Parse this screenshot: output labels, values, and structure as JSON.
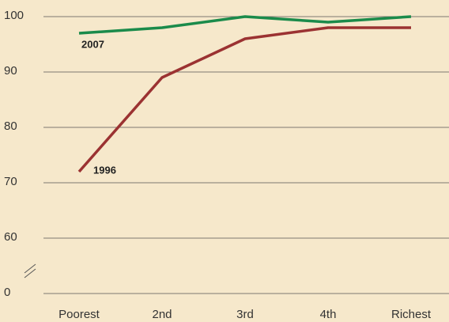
{
  "chart_data": {
    "type": "line",
    "categories": [
      "Poorest",
      "2nd",
      "3rd",
      "4th",
      "Richest"
    ],
    "series": [
      {
        "name": "2007",
        "color": "#1b8b4b",
        "values": [
          97,
          98,
          100,
          99,
          100
        ]
      },
      {
        "name": "1996",
        "color": "#9b3232",
        "values": [
          72,
          89,
          96,
          98,
          98
        ]
      }
    ],
    "ylim": [
      0,
      100
    ],
    "yticks": [
      0,
      60,
      70,
      80,
      90,
      100
    ],
    "axis_break": [
      0,
      60
    ],
    "grid": true
  }
}
